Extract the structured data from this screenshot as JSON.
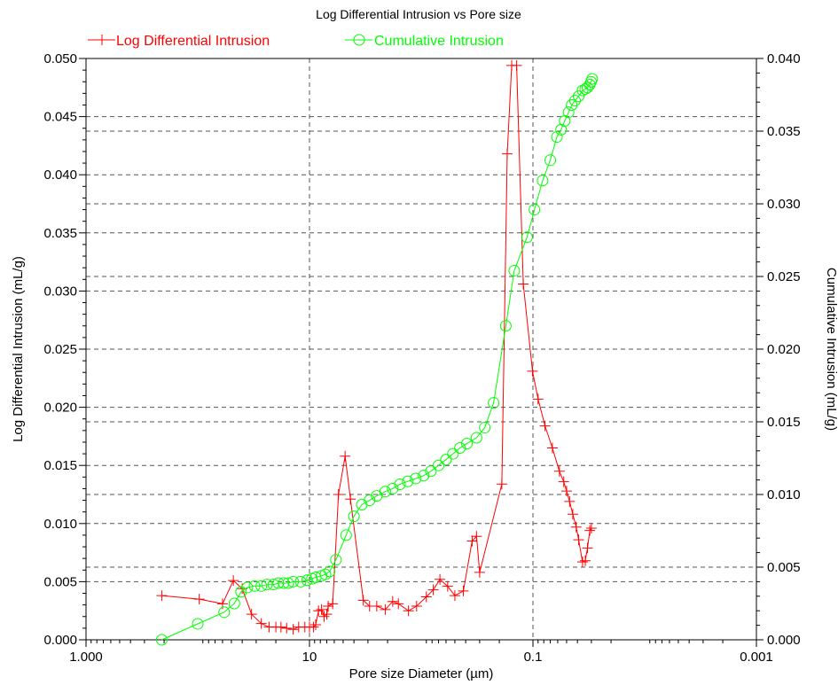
{
  "chart_data": {
    "type": "line",
    "title": "Log Differential Intrusion vs Pore size",
    "xlabel": "Pore size Diameter (µm)",
    "ylabel_left": "Log Differential Intrusion (mL/g)",
    "ylabel_right": "Cumulative Intrusion (mL/g)",
    "x_scale": "log",
    "x_reversed": true,
    "xlim": [
      1000,
      0.001
    ],
    "x_ticks": [
      {
        "value": 1000,
        "label": "1.000"
      },
      {
        "value": 10,
        "label": "10"
      },
      {
        "value": 0.1,
        "label": "0.1"
      },
      {
        "value": 0.001,
        "label": "0.001"
      }
    ],
    "ylim_left": [
      0,
      0.05
    ],
    "ylim_right": [
      0,
      0.04
    ],
    "y_ticks_left": [
      "0.000",
      "0.005",
      "0.010",
      "0.015",
      "0.020",
      "0.025",
      "0.030",
      "0.035",
      "0.040",
      "0.045",
      "0.050"
    ],
    "y_ticks_right": [
      "0.000",
      "0.005",
      "0.010",
      "0.015",
      "0.020",
      "0.025",
      "0.030",
      "0.035",
      "0.040"
    ],
    "grid": true,
    "legend_position": "top",
    "series": [
      {
        "name": "Log Differential Intrusion",
        "axis": "left",
        "color": "#ff0000",
        "marker": "plus",
        "points": [
          [
            210,
            0.0038
          ],
          [
            97,
            0.0035
          ],
          [
            60,
            0.0031
          ],
          [
            48,
            0.0051
          ],
          [
            40,
            0.0044
          ],
          [
            33,
            0.0022
          ],
          [
            27,
            0.0014
          ],
          [
            23,
            0.0011
          ],
          [
            20,
            0.0011
          ],
          [
            18,
            0.0011
          ],
          [
            16,
            0.001
          ],
          [
            14,
            0.0009
          ],
          [
            12.5,
            0.0011
          ],
          [
            11,
            0.0011
          ],
          [
            10,
            0.0011
          ],
          [
            9.2,
            0.0011
          ],
          [
            8.8,
            0.0013
          ],
          [
            8.3,
            0.0025
          ],
          [
            7.8,
            0.0026
          ],
          [
            7.4,
            0.002
          ],
          [
            7.0,
            0.0022
          ],
          [
            6.8,
            0.0029
          ],
          [
            6.2,
            0.0031
          ],
          [
            5.5,
            0.0125
          ],
          [
            4.8,
            0.0158
          ],
          [
            4.3,
            0.0121
          ],
          [
            3.3,
            0.0034
          ],
          [
            2.9,
            0.0029
          ],
          [
            2.5,
            0.0029
          ],
          [
            2.1,
            0.0026
          ],
          [
            1.8,
            0.0033
          ],
          [
            1.6,
            0.0031
          ],
          [
            1.3,
            0.0025
          ],
          [
            1.1,
            0.0029
          ],
          [
            0.9,
            0.0037
          ],
          [
            0.78,
            0.0043
          ],
          [
            0.68,
            0.0052
          ],
          [
            0.58,
            0.0046
          ],
          [
            0.5,
            0.0038
          ],
          [
            0.42,
            0.0042
          ],
          [
            0.35,
            0.0085
          ],
          [
            0.32,
            0.0089
          ],
          [
            0.3,
            0.0058
          ],
          [
            0.19,
            0.0134
          ],
          [
            0.17,
            0.0418
          ],
          [
            0.155,
            0.0494
          ],
          [
            0.14,
            0.0494
          ],
          [
            0.122,
            0.0306
          ],
          [
            0.101,
            0.0231
          ],
          [
            0.09,
            0.0207
          ],
          [
            0.078,
            0.0184
          ],
          [
            0.067,
            0.0165
          ],
          [
            0.058,
            0.0145
          ],
          [
            0.053,
            0.0136
          ],
          [
            0.05,
            0.0128
          ],
          [
            0.047,
            0.0119
          ],
          [
            0.044,
            0.0108
          ],
          [
            0.041,
            0.0097
          ],
          [
            0.039,
            0.0086
          ],
          [
            0.036,
            0.0067
          ],
          [
            0.034,
            0.0068
          ],
          [
            0.0325,
            0.0079
          ],
          [
            0.031,
            0.0094
          ],
          [
            0.03,
            0.0096
          ]
        ]
      },
      {
        "name": "Cumulative Intrusion",
        "axis": "right",
        "color": "#00ff00",
        "marker": "circle",
        "points": [
          [
            210,
            0.0
          ],
          [
            100,
            0.0011
          ],
          [
            58,
            0.0019
          ],
          [
            47,
            0.0025
          ],
          [
            41,
            0.0033
          ],
          [
            36,
            0.0036
          ],
          [
            31,
            0.0037
          ],
          [
            27,
            0.0037
          ],
          [
            24,
            0.0038
          ],
          [
            21,
            0.0038
          ],
          [
            19,
            0.0039
          ],
          [
            17,
            0.0039
          ],
          [
            15.5,
            0.0039
          ],
          [
            14,
            0.004
          ],
          [
            12,
            0.004
          ],
          [
            10.5,
            0.0041
          ],
          [
            9.5,
            0.0042
          ],
          [
            8.8,
            0.0043
          ],
          [
            7.8,
            0.0044
          ],
          [
            7.2,
            0.0045
          ],
          [
            6.6,
            0.0047
          ],
          [
            5.8,
            0.0055
          ],
          [
            4.7,
            0.0072
          ],
          [
            4.0,
            0.0085
          ],
          [
            3.4,
            0.0093
          ],
          [
            2.9,
            0.0096
          ],
          [
            2.5,
            0.0099
          ],
          [
            2.1,
            0.0102
          ],
          [
            1.8,
            0.0104
          ],
          [
            1.55,
            0.0107
          ],
          [
            1.32,
            0.0109
          ],
          [
            1.12,
            0.0111
          ],
          [
            0.95,
            0.0113
          ],
          [
            0.82,
            0.0116
          ],
          [
            0.7,
            0.012
          ],
          [
            0.6,
            0.0124
          ],
          [
            0.52,
            0.0128
          ],
          [
            0.45,
            0.0132
          ],
          [
            0.39,
            0.0135
          ],
          [
            0.32,
            0.0139
          ],
          [
            0.27,
            0.0146
          ],
          [
            0.225,
            0.0163
          ],
          [
            0.175,
            0.0216
          ],
          [
            0.147,
            0.0254
          ],
          [
            0.113,
            0.0277
          ],
          [
            0.097,
            0.0296
          ],
          [
            0.082,
            0.0316
          ],
          [
            0.07,
            0.033
          ],
          [
            0.061,
            0.0346
          ],
          [
            0.056,
            0.0351
          ],
          [
            0.052,
            0.0357
          ],
          [
            0.048,
            0.0363
          ],
          [
            0.045,
            0.0368
          ],
          [
            0.042,
            0.0371
          ],
          [
            0.039,
            0.0374
          ],
          [
            0.036,
            0.0378
          ],
          [
            0.034,
            0.0379
          ],
          [
            0.0325,
            0.038
          ],
          [
            0.031,
            0.0382
          ],
          [
            0.0302,
            0.0384
          ],
          [
            0.0295,
            0.0386
          ]
        ]
      }
    ]
  }
}
